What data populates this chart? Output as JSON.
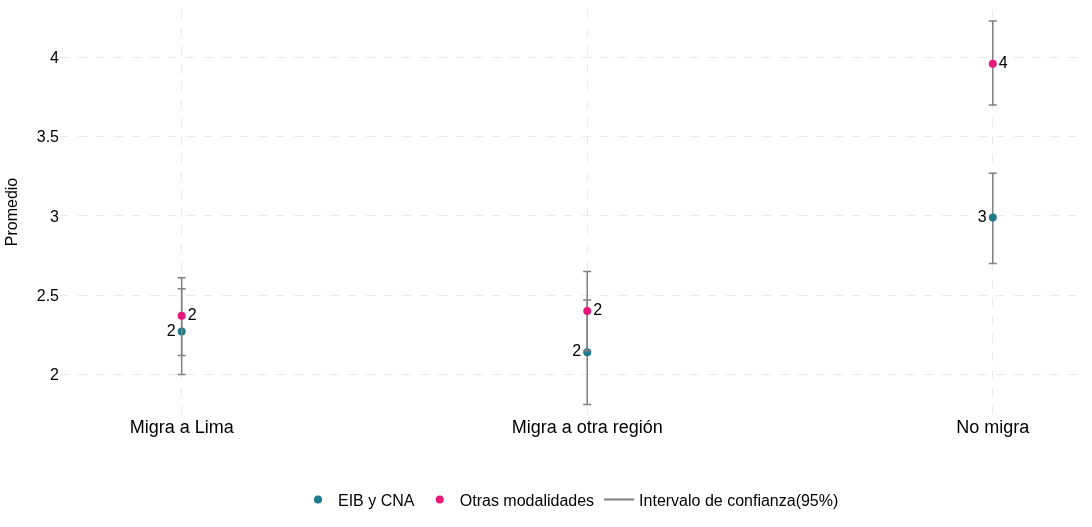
{
  "chart_data": {
    "type": "scatter",
    "ylabel": "Promedio",
    "categories": [
      "Migra a Lima",
      "Migra a otra región",
      "No migra"
    ],
    "series": [
      {
        "name": "EIB y CNA",
        "color": "#1f7a8c",
        "values": [
          2.27,
          2.14,
          2.99
        ],
        "errors": [
          [
            2.0,
            2.54
          ],
          [
            1.81,
            2.47
          ],
          [
            2.7,
            3.27
          ]
        ],
        "value_labels": [
          "2",
          "2",
          "3"
        ]
      },
      {
        "name": "Otras modalidades",
        "color": "#e8187a",
        "values": [
          2.37,
          2.4,
          3.96
        ],
        "errors": [
          [
            2.12,
            2.61
          ],
          [
            2.15,
            2.65
          ],
          [
            3.7,
            4.23
          ]
        ],
        "value_labels": [
          "2",
          "2",
          "4"
        ]
      }
    ],
    "annotations": [
      "Intervalo de confianza(95%)"
    ],
    "ylim": [
      1.75,
      4.3
    ],
    "yticks": [
      2,
      2.5,
      3,
      3.5,
      4
    ],
    "grid": true,
    "legend": "bottom",
    "marker": "circle"
  }
}
